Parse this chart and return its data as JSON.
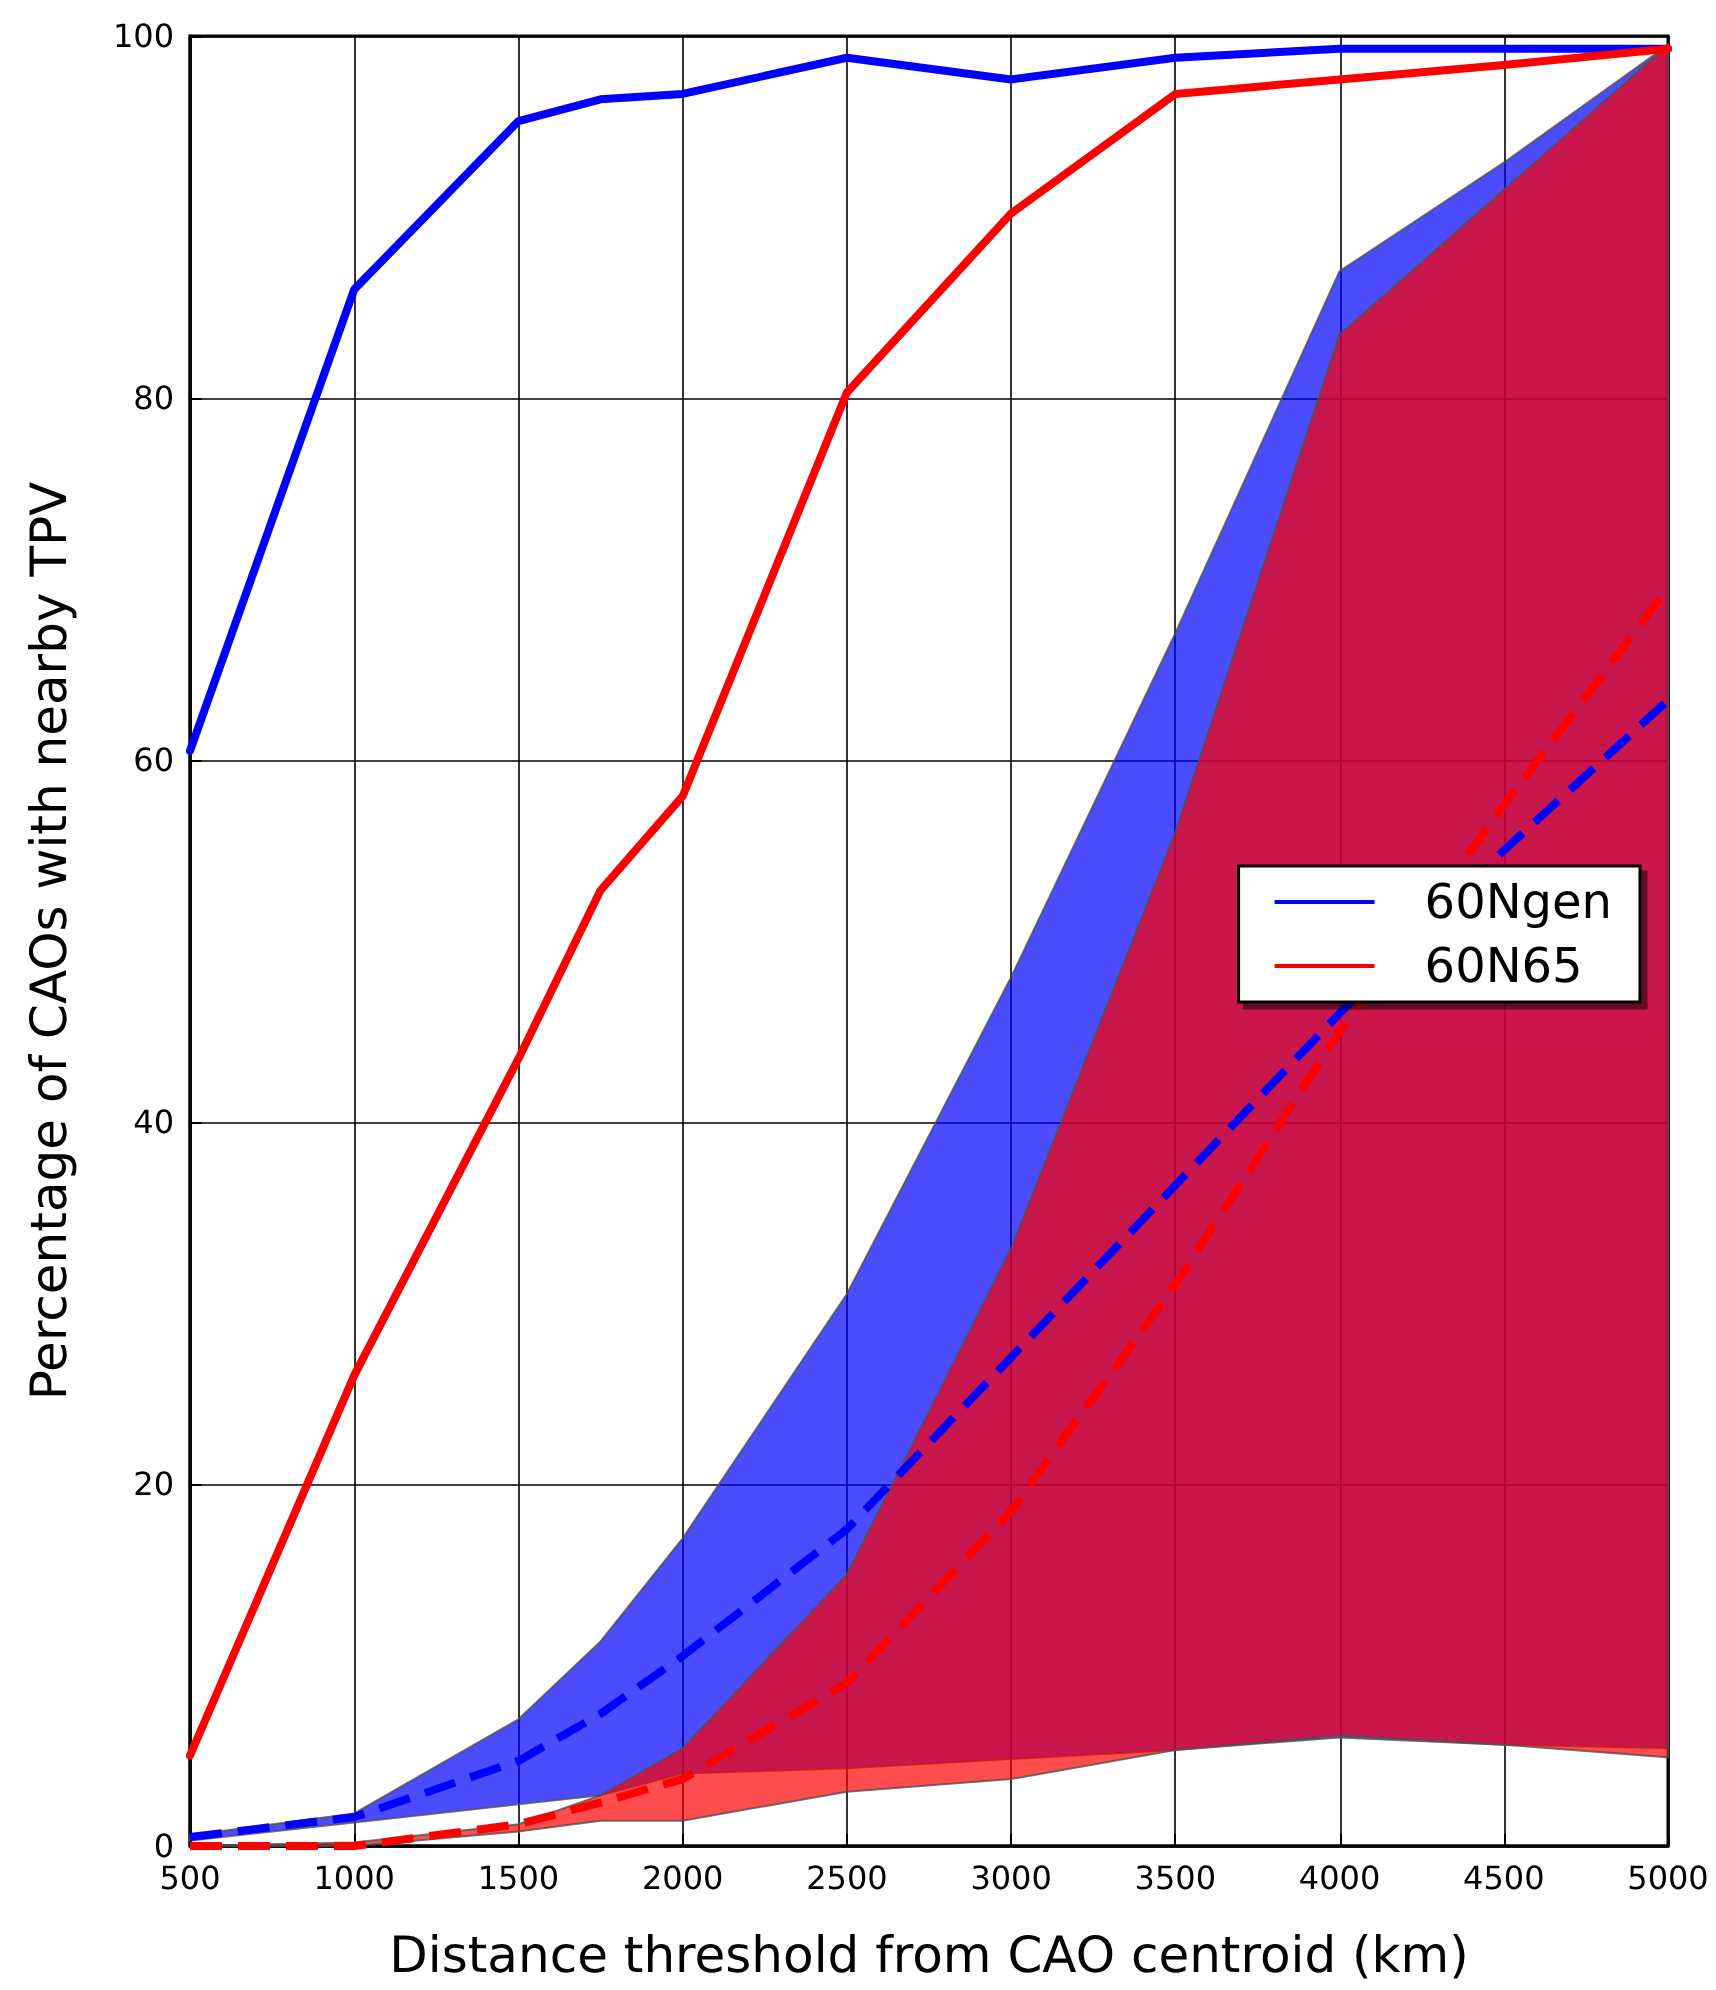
{
  "chart_data": {
    "type": "line",
    "xlabel": "Distance threshold from CAO centroid (km)",
    "ylabel": "Percentage of CAOs with nearby TPV",
    "x": [
      500,
      1000,
      1500,
      1750,
      2000,
      2500,
      3000,
      3500,
      4000,
      4500,
      5000
    ],
    "series": [
      {
        "name": "60Ngen",
        "color": "#0000ff",
        "values": [
          60.5,
          86,
          95.3,
          96.5,
          96.8,
          98.8,
          97.6,
          98.8,
          99.3,
          99.3,
          99.3
        ]
      },
      {
        "name": "60N65",
        "color": "#ff0000",
        "values": [
          5,
          26,
          43.5,
          52.8,
          58,
          80.3,
          90.2,
          96.8,
          97.6,
          98.4,
          99.3
        ]
      },
      {
        "color": "#0000ff",
        "line_style": "dashed",
        "values": [
          0.5,
          1.6,
          4.7,
          7.3,
          10.5,
          17.5,
          27,
          36.5,
          46,
          55,
          63.3
        ],
        "lower": [
          0.3,
          1.3,
          2.3,
          2.8,
          4,
          4.3,
          4.8,
          5.3,
          6,
          5.6,
          5.4
        ],
        "upper": [
          0.6,
          1.8,
          7,
          11.3,
          17,
          30.5,
          48,
          67,
          87,
          93,
          99.5
        ]
      },
      {
        "color": "#ff0000",
        "line_style": "dashed",
        "values": [
          0,
          0,
          1.2,
          2.4,
          3.7,
          9,
          18.5,
          31,
          45,
          57.5,
          69.5
        ],
        "lower": [
          0,
          0,
          0.8,
          1.4,
          1.4,
          3,
          3.7,
          5.3,
          6.1,
          5.6,
          4.9
        ],
        "upper": [
          0,
          0.2,
          1.2,
          2.8,
          5.4,
          15,
          33,
          56,
          83.5,
          91.5,
          99.5
        ]
      }
    ],
    "xlim": [
      500,
      5000
    ],
    "xticks": [
      500,
      1000,
      1500,
      2000,
      2500,
      3000,
      3500,
      4000,
      4500,
      5000
    ],
    "ylim": [
      0,
      100
    ],
    "yticks": [
      0,
      20,
      40,
      60,
      80,
      100
    ],
    "grid": true,
    "legend": "right",
    "line_style": "solid",
    "marker": "none"
  }
}
